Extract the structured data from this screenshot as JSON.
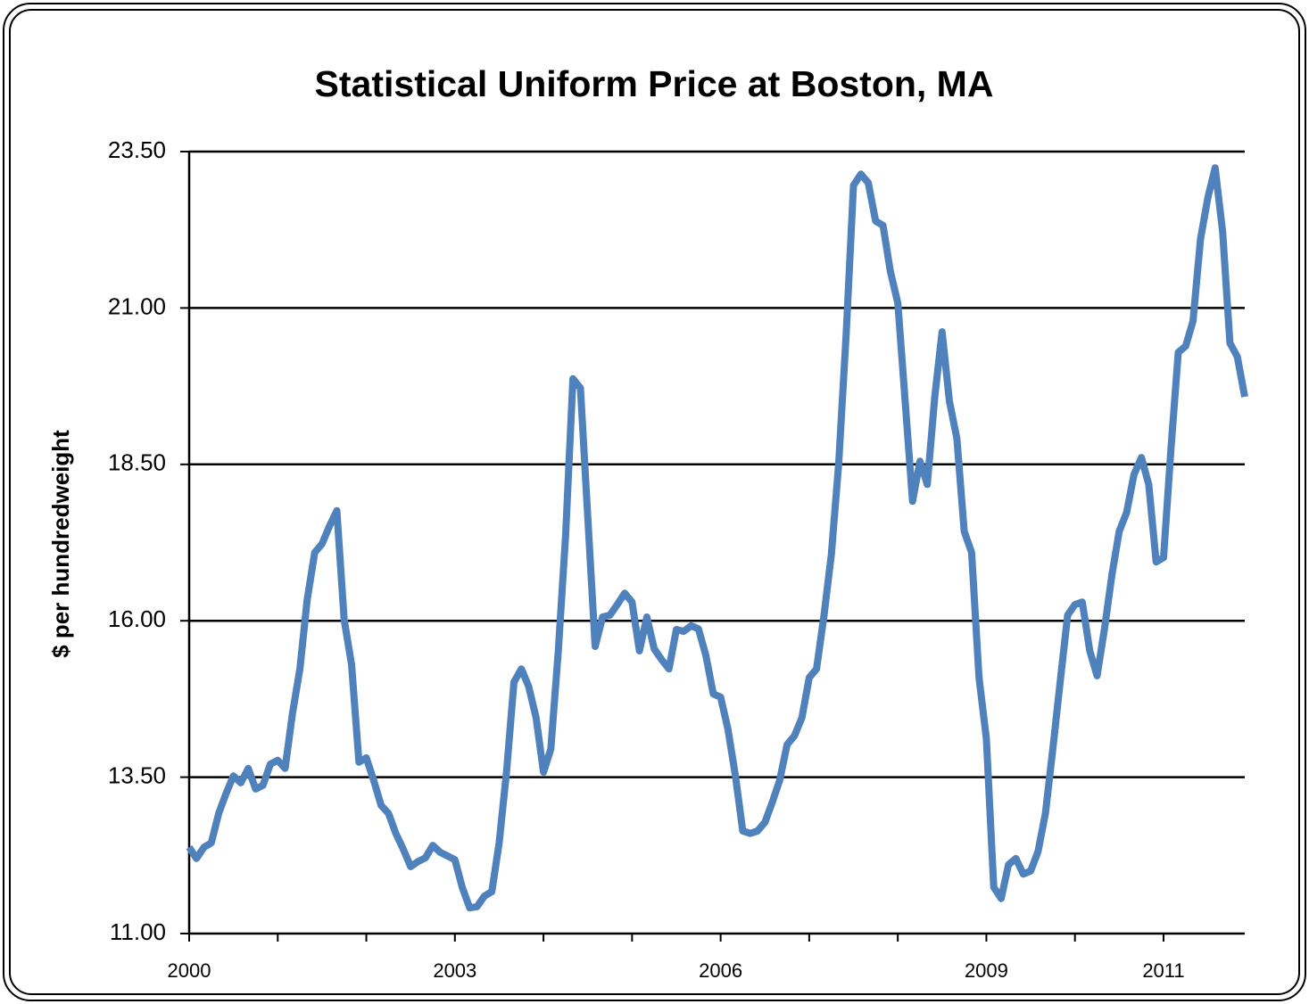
{
  "chart_data": {
    "type": "line",
    "title": "Statistical Uniform Price at Boston, MA",
    "y_label": "$ per hundredweight",
    "color": "#4f81bd",
    "x": [
      2000,
      2000.083,
      2000.167,
      2000.25,
      2000.333,
      2000.417,
      2000.5,
      2000.583,
      2000.667,
      2000.75,
      2000.833,
      2000.917,
      2001,
      2001.083,
      2001.167,
      2001.25,
      2001.333,
      2001.417,
      2001.5,
      2001.583,
      2001.667,
      2001.75,
      2001.833,
      2001.917,
      2002,
      2002.083,
      2002.167,
      2002.25,
      2002.333,
      2002.417,
      2002.5,
      2002.583,
      2002.667,
      2002.75,
      2002.833,
      2002.917,
      2003,
      2003.083,
      2003.167,
      2003.25,
      2003.333,
      2003.417,
      2003.5,
      2003.583,
      2003.667,
      2003.75,
      2003.833,
      2003.917,
      2004,
      2004.083,
      2004.167,
      2004.25,
      2004.333,
      2004.417,
      2004.5,
      2004.583,
      2004.667,
      2004.75,
      2004.833,
      2004.917,
      2005,
      2005.083,
      2005.167,
      2005.25,
      2005.333,
      2005.417,
      2005.5,
      2005.583,
      2005.667,
      2005.75,
      2005.833,
      2005.917,
      2006,
      2006.083,
      2006.167,
      2006.25,
      2006.333,
      2006.417,
      2006.5,
      2006.583,
      2006.667,
      2006.75,
      2006.833,
      2006.917,
      2007,
      2007.083,
      2007.167,
      2007.25,
      2007.333,
      2007.417,
      2007.5,
      2007.583,
      2007.667,
      2007.75,
      2007.833,
      2007.917,
      2008,
      2008.083,
      2008.167,
      2008.25,
      2008.333,
      2008.417,
      2008.5,
      2008.583,
      2008.667,
      2008.75,
      2008.833,
      2008.917,
      2009,
      2009.083,
      2009.167,
      2009.25,
      2009.333,
      2009.417,
      2009.5,
      2009.583,
      2009.667,
      2009.75,
      2009.833,
      2009.917,
      2010,
      2010.083,
      2010.167,
      2010.25,
      2010.333,
      2010.417,
      2010.5,
      2010.583,
      2010.667,
      2010.75,
      2010.833,
      2010.917,
      2011,
      2011.083,
      2011.167,
      2011.25,
      2011.333,
      2011.417,
      2011.5,
      2011.583,
      2011.667,
      2011.75,
      2011.833,
      2011.917
    ],
    "values": [
      12.38,
      12.2,
      12.38,
      12.45,
      12.92,
      13.24,
      13.52,
      13.41,
      13.64,
      13.31,
      13.37,
      13.71,
      13.77,
      13.64,
      14.52,
      15.23,
      16.34,
      17.09,
      17.23,
      17.51,
      17.76,
      16.02,
      15.3,
      13.74,
      13.81,
      13.45,
      13.05,
      12.92,
      12.6,
      12.35,
      12.07,
      12.15,
      12.21,
      12.41,
      12.3,
      12.24,
      12.18,
      11.74,
      11.41,
      11.43,
      11.6,
      11.67,
      12.45,
      13.59,
      15.02,
      15.23,
      14.95,
      14.45,
      13.58,
      13.95,
      15.52,
      17.37,
      19.87,
      19.72,
      17.66,
      15.59,
      16.06,
      16.09,
      16.26,
      16.44,
      16.3,
      15.52,
      16.06,
      15.55,
      15.38,
      15.23,
      15.86,
      15.83,
      15.92,
      15.87,
      15.45,
      14.83,
      14.78,
      14.26,
      13.52,
      12.64,
      12.6,
      12.64,
      12.78,
      13.1,
      13.45,
      14.02,
      14.16,
      14.45,
      15.09,
      15.23,
      16.09,
      17.06,
      18.51,
      20.58,
      22.96,
      23.14,
      23.0,
      22.39,
      22.32,
      21.58,
      21.08,
      19.51,
      17.91,
      18.55,
      18.18,
      19.58,
      20.62,
      19.51,
      18.91,
      17.43,
      17.09,
      15.09,
      14.12,
      11.74,
      11.56,
      12.1,
      12.2,
      11.95,
      12.0,
      12.31,
      12.92,
      13.95,
      15.02,
      16.09,
      16.26,
      16.3,
      15.52,
      15.12,
      15.87,
      16.73,
      17.43,
      17.73,
      18.34,
      18.61,
      18.18,
      16.94,
      17.01,
      18.73,
      20.29,
      20.39,
      20.79,
      22.1,
      22.76,
      23.24,
      22.22,
      20.44,
      20.22,
      19.58
    ],
    "xlim": [
      2000,
      2011.917
    ],
    "xticks": [
      2000,
      2003,
      2006,
      2009,
      2011
    ],
    "xminor_ticks": [
      2001,
      2002,
      2004,
      2005,
      2007,
      2008,
      2010
    ],
    "ylim": [
      11,
      23.5
    ],
    "yticks": [
      {
        "value": 11,
        "label": "11.00"
      },
      {
        "value": 13.5,
        "label": "13.50"
      },
      {
        "value": 16,
        "label": "16.00"
      },
      {
        "value": 18.5,
        "label": "18.50"
      },
      {
        "value": 21,
        "label": "21.00"
      },
      {
        "value": 23.5,
        "label": "23.50"
      }
    ],
    "grid": true
  }
}
